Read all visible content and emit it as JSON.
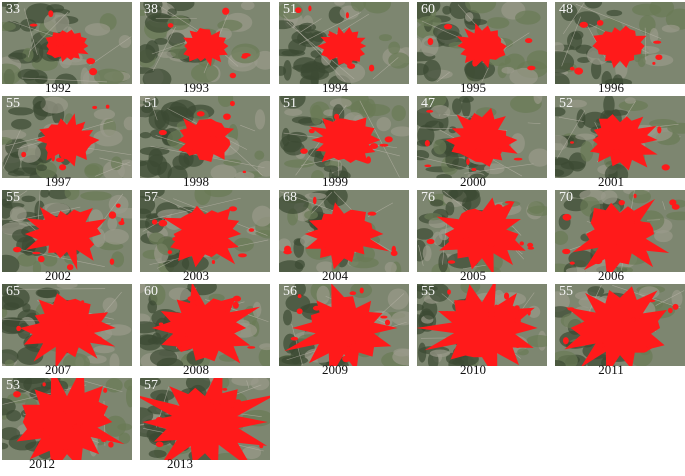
{
  "panels": [
    {
      "number": 33,
      "year": 1992
    },
    {
      "number": 38,
      "year": 1993
    },
    {
      "number": 51,
      "year": 1994
    },
    {
      "number": 60,
      "year": 1995
    },
    {
      "number": 48,
      "year": 1996
    },
    {
      "number": 55,
      "year": 1997
    },
    {
      "number": 51,
      "year": 1998
    },
    {
      "number": 51,
      "year": 1999
    },
    {
      "number": 47,
      "year": 2000
    },
    {
      "number": 52,
      "year": 2001
    },
    {
      "number": 55,
      "year": 2002
    },
    {
      "number": 57,
      "year": 2003
    },
    {
      "number": 68,
      "year": 2004
    },
    {
      "number": 76,
      "year": 2005
    },
    {
      "number": 70,
      "year": 2006
    },
    {
      "number": 65,
      "year": 2007
    },
    {
      "number": 60,
      "year": 2008
    },
    {
      "number": 56,
      "year": 2009
    },
    {
      "number": 55,
      "year": 2010
    },
    {
      "number": 55,
      "year": 2011
    },
    {
      "number": 53,
      "year": 2012
    },
    {
      "number": 57,
      "year": 2013
    }
  ]
}
